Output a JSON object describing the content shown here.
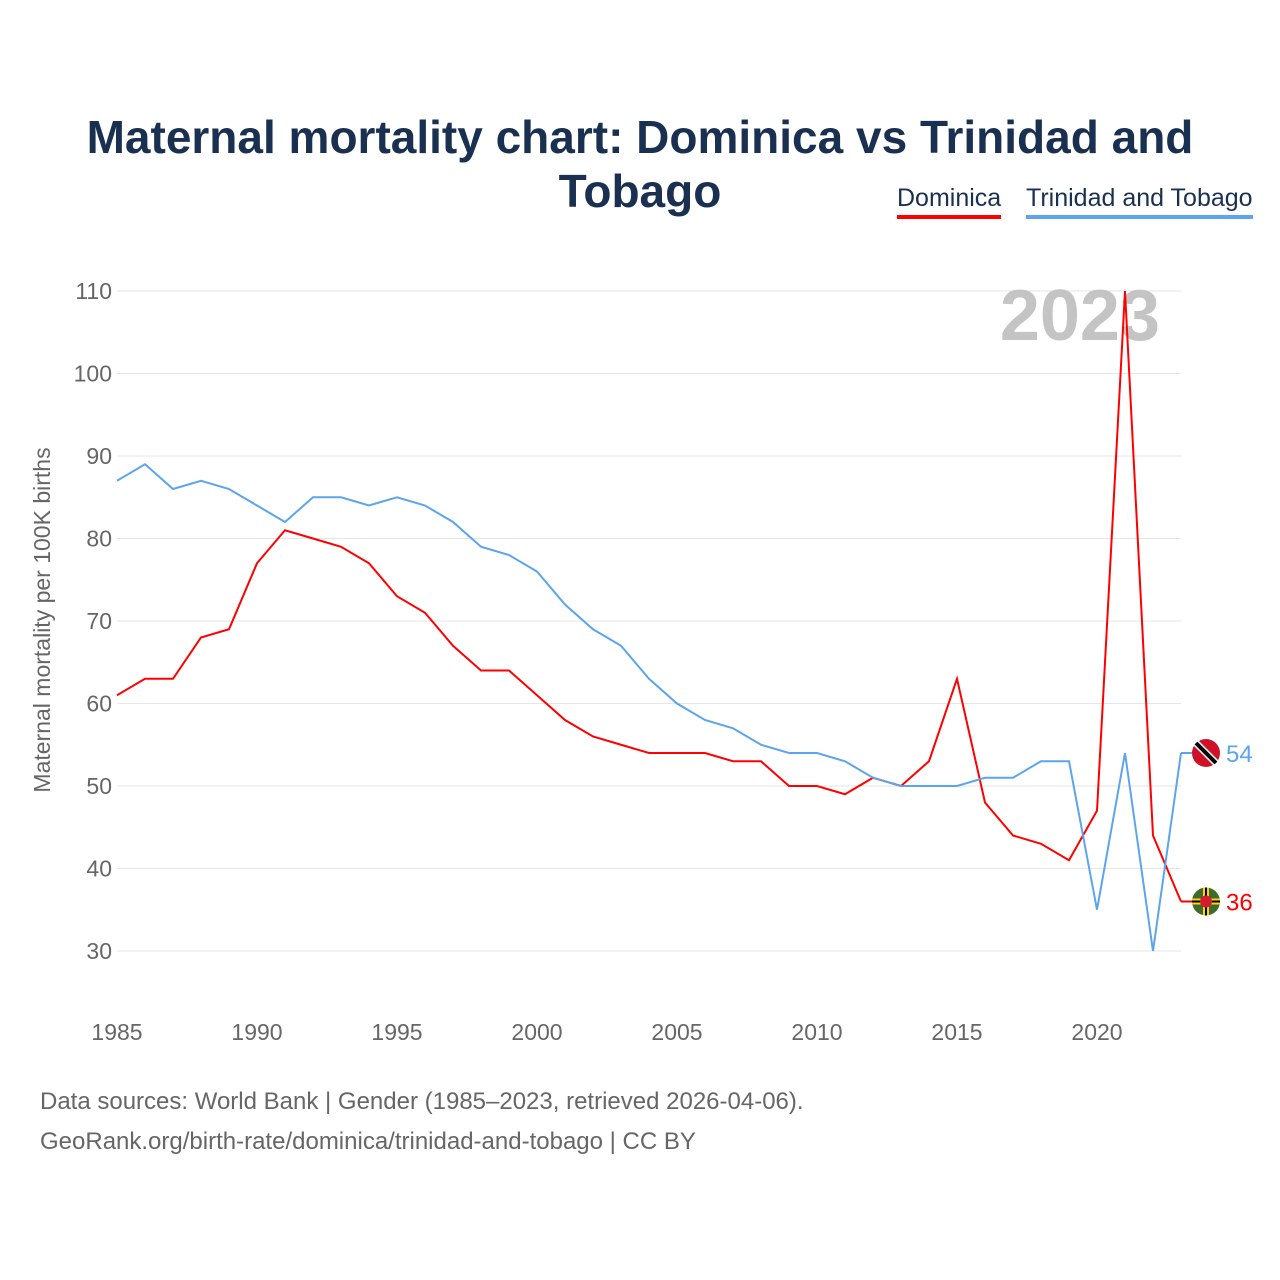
{
  "chart_data": {
    "type": "line",
    "title": "Maternal mortality chart: Dominica vs Trinidad and Tobago",
    "ylabel": "Maternal mortality per 100K births",
    "xlabel": "",
    "year_label": "2023",
    "ylim": [
      30,
      110
    ],
    "xlim": [
      1985,
      2023
    ],
    "yticks": [
      30,
      40,
      50,
      60,
      70,
      80,
      90,
      100,
      110
    ],
    "xticks": [
      1985,
      1990,
      1995,
      2000,
      2005,
      2010,
      2015,
      2020
    ],
    "grid": true,
    "legend_position": "top-right",
    "x": [
      1985,
      1986,
      1987,
      1988,
      1989,
      1990,
      1991,
      1992,
      1993,
      1994,
      1995,
      1996,
      1997,
      1998,
      1999,
      2000,
      2001,
      2002,
      2003,
      2004,
      2005,
      2006,
      2007,
      2008,
      2009,
      2010,
      2011,
      2012,
      2013,
      2014,
      2015,
      2016,
      2017,
      2018,
      2019,
      2020,
      2021,
      2022,
      2023
    ],
    "series": [
      {
        "name": "Dominica",
        "color": "#ff0000",
        "end_label": "36",
        "values": [
          61,
          63,
          63,
          68,
          69,
          77,
          81,
          80,
          79,
          77,
          73,
          71,
          67,
          64,
          64,
          61,
          58,
          56,
          55,
          54,
          54,
          54,
          53,
          53,
          50,
          50,
          49,
          51,
          50,
          53,
          63,
          48,
          44,
          43,
          41,
          47,
          110,
          44,
          36
        ]
      },
      {
        "name": "Trinidad and Tobago",
        "color": "#5ba5ee",
        "end_label": "54",
        "values": [
          87,
          89,
          86,
          87,
          86,
          84,
          82,
          85,
          85,
          84,
          85,
          84,
          82,
          79,
          78,
          76,
          72,
          69,
          67,
          63,
          60,
          58,
          57,
          55,
          54,
          54,
          53,
          51,
          50,
          50,
          50,
          51,
          51,
          53,
          53,
          35,
          54,
          30,
          54
        ]
      }
    ]
  },
  "footer": {
    "line1": "Data sources: World Bank | Gender (1985–2023, retrieved 2026-04-06).",
    "line2": "GeoRank.org/birth-rate/dominica/trinidad-and-tobago | CC BY"
  }
}
